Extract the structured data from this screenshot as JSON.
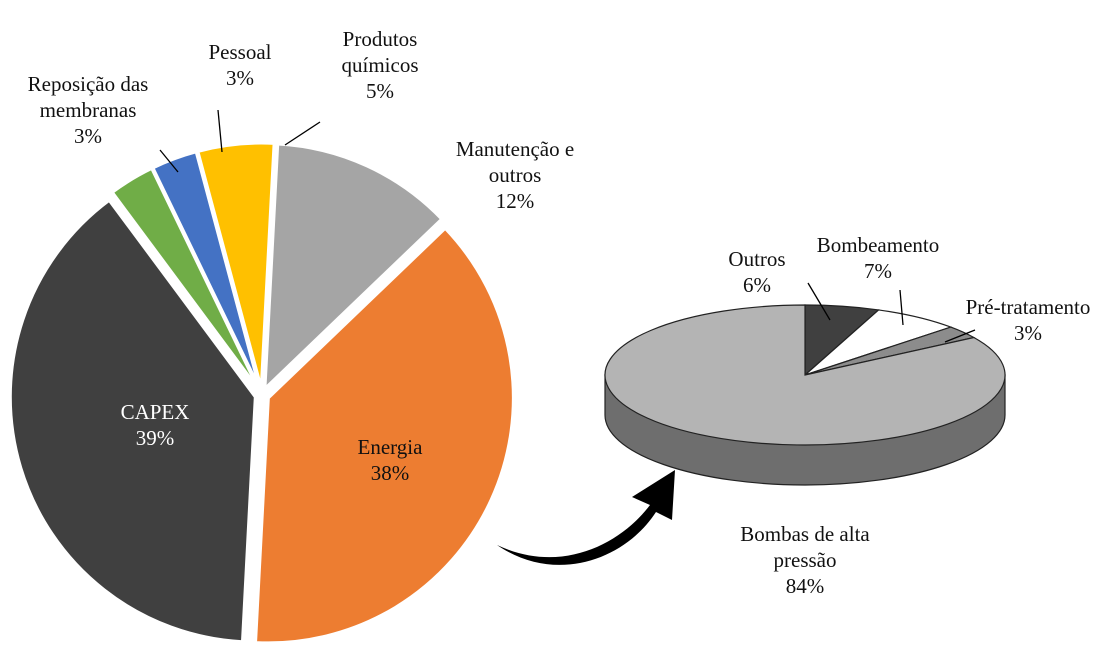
{
  "chart_data": [
    {
      "type": "pie",
      "categories": [
        "Manutenção e outros",
        "Energia",
        "CAPEX",
        "Reposição das membranas",
        "Pessoal",
        "Produtos químicos"
      ],
      "values": [
        12,
        38,
        39,
        3,
        3,
        5
      ],
      "value_labels": [
        "12%",
        "38%",
        "39%",
        "3%",
        "3%",
        "5%"
      ],
      "colors": [
        "#a5a5a5",
        "#ed7d31",
        "#404040",
        "#70ad47",
        "#4472c4",
        "#ffc000"
      ]
    },
    {
      "type": "pie3d",
      "categories": [
        "Outros",
        "Bombeamento",
        "Pré-tratamento",
        "Bombas de alta pressão"
      ],
      "values": [
        6,
        7,
        3,
        84
      ],
      "value_labels": [
        "6%",
        "7%",
        "3%",
        "84%"
      ],
      "colors": [
        "#404040",
        "#ffffff",
        "#8c8c8c",
        "#b4b4b4"
      ]
    }
  ]
}
